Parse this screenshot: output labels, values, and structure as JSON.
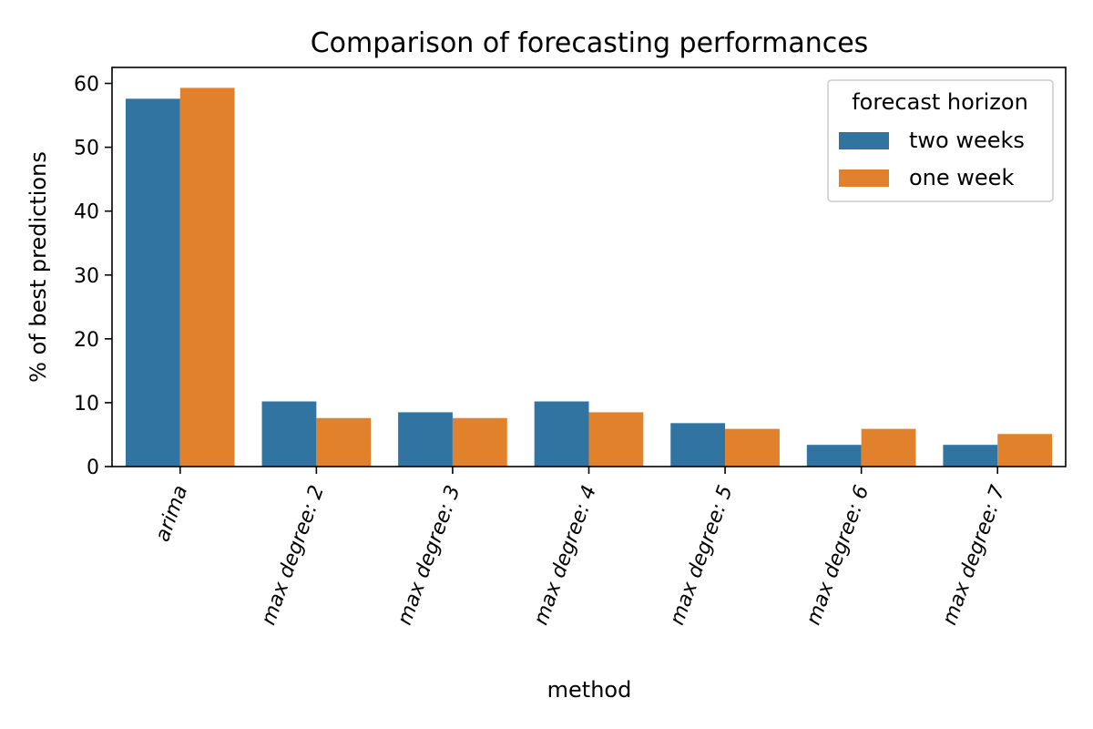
{
  "chart_data": {
    "type": "bar",
    "title": "Comparison of forecasting performances",
    "xlabel": "method",
    "ylabel": "% of best predictions",
    "categories": [
      "arima",
      "max degree: 2",
      "max degree: 3",
      "max degree: 4",
      "max degree: 5",
      "max degree: 6",
      "max degree: 7"
    ],
    "series": [
      {
        "name": "two weeks",
        "color": "#3274a1",
        "values": [
          57.6,
          10.2,
          8.5,
          10.2,
          6.8,
          3.4,
          3.4
        ]
      },
      {
        "name": "one week",
        "color": "#e1812c",
        "values": [
          59.3,
          7.6,
          7.6,
          8.5,
          5.9,
          5.9,
          5.1
        ]
      }
    ],
    "ylim": [
      0,
      62.5
    ],
    "yticks": [
      0,
      10,
      20,
      30,
      40,
      50,
      60
    ],
    "legend": {
      "title": "forecast horizon",
      "placement": "top-right"
    },
    "grid": false
  }
}
